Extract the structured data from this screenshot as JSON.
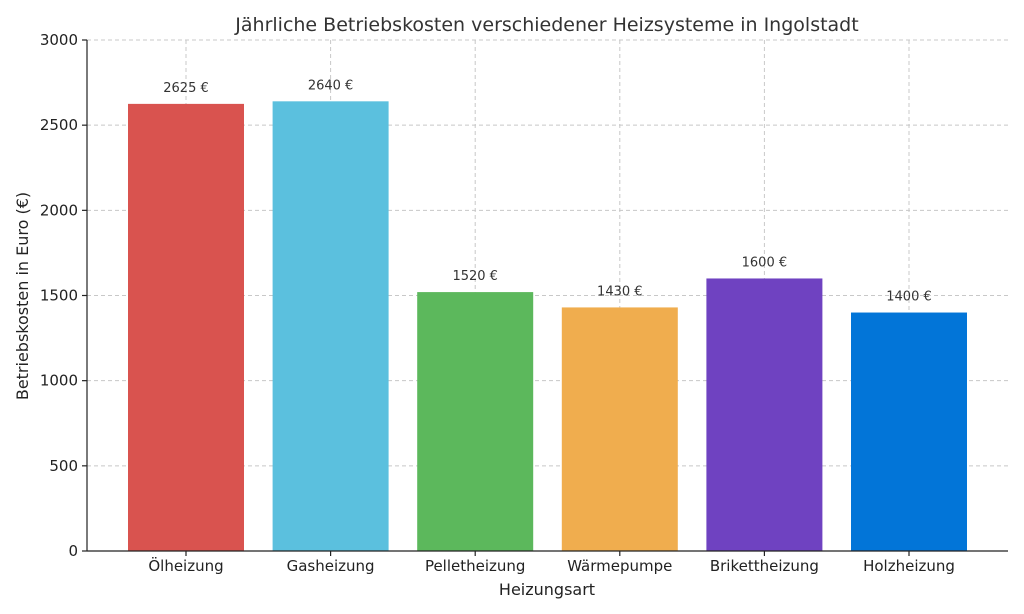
{
  "chart_data": {
    "type": "bar",
    "title": "Jährliche Betriebskosten verschiedener Heizsysteme in Ingolstadt",
    "xlabel": "Heizungsart",
    "ylabel": "Betriebskosten in Euro (€)",
    "categories": [
      "Ölheizung",
      "Gasheizung",
      "Pelletheizung",
      "Wärmepumpe",
      "Brikettheizung",
      "Holzheizung"
    ],
    "values": [
      2625,
      2640,
      1520,
      1430,
      1600,
      1400
    ],
    "value_labels": [
      "2625 €",
      "2640 €",
      "1520 €",
      "1430 €",
      "1600 €",
      "1400 €"
    ],
    "colors": [
      "#d9534f",
      "#5bc0de",
      "#5cb85c",
      "#f0ad4e",
      "#6f42c1",
      "#0275d8"
    ],
    "ylim": [
      0,
      3000
    ],
    "yticks": [
      0,
      500,
      1000,
      1500,
      2000,
      2500,
      3000
    ],
    "grid": true,
    "legend": "none"
  }
}
